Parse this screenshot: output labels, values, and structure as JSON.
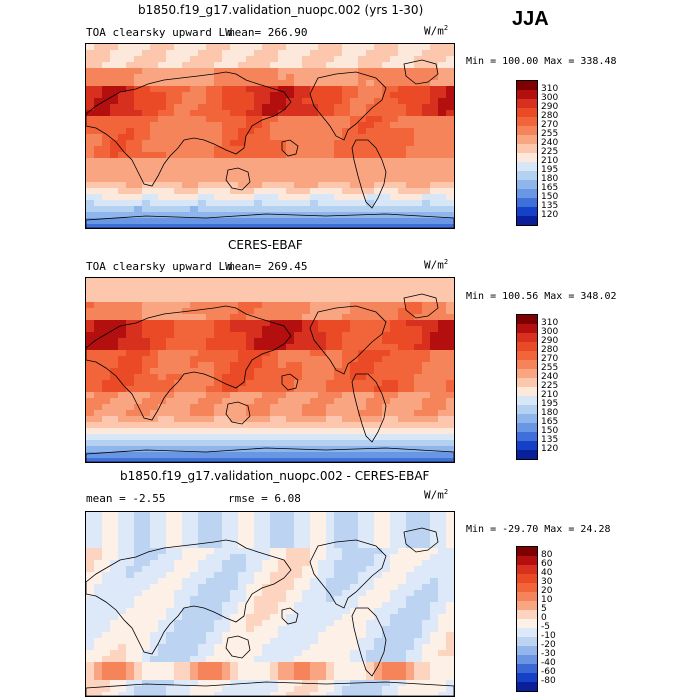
{
  "season": "JJA",
  "panels": [
    {
      "title": "b1850.f19_g17.validation_nuopc.002 (yrs 1-30)",
      "variable": "TOA clearsky upward LW",
      "mean_label": "mean= 266.90",
      "units": "W/m",
      "units_sup": "2",
      "minmax": "Min = 100.00 Max = 338.48",
      "kind": "absolute",
      "colorbar": {
        "labels": [
          "310",
          "300",
          "290",
          "280",
          "270",
          "255",
          "240",
          "225",
          "210",
          "195",
          "180",
          "165",
          "150",
          "135",
          "120"
        ],
        "colors": [
          "#7f0000",
          "#b40f0f",
          "#d7301f",
          "#ea4a26",
          "#f2653a",
          "#f6845a",
          "#f9a582",
          "#fcc7ad",
          "#fde8dc",
          "#d7e7f7",
          "#b5d1f2",
          "#8eb6ec",
          "#6a97e4",
          "#3f6fd8",
          "#1540c8",
          "#0a1f9a"
        ]
      }
    },
    {
      "title": "CERES-EBAF",
      "variable": "TOA clearsky upward LW",
      "mean_label": "mean= 269.45",
      "units": "W/m",
      "units_sup": "2",
      "minmax": "Min = 100.56 Max = 348.02",
      "kind": "absolute",
      "colorbar": {
        "labels": [
          "310",
          "300",
          "290",
          "280",
          "270",
          "255",
          "240",
          "225",
          "210",
          "195",
          "180",
          "165",
          "150",
          "135",
          "120"
        ],
        "colors": [
          "#7f0000",
          "#b40f0f",
          "#d7301f",
          "#ea4a26",
          "#f2653a",
          "#f6845a",
          "#f9a582",
          "#fcc7ad",
          "#fde8dc",
          "#d7e7f7",
          "#b5d1f2",
          "#8eb6ec",
          "#6a97e4",
          "#3f6fd8",
          "#1540c8",
          "#0a1f9a"
        ]
      }
    },
    {
      "title": "b1850.f19_g17.validation_nuopc.002 - CERES-EBAF",
      "mean_label": "mean =   -2.55",
      "rmse_label": "rmse =    6.08",
      "units": "W/m",
      "units_sup": "2",
      "minmax": "Min = -29.70 Max =  24.28",
      "kind": "difference",
      "colorbar": {
        "labels": [
          "80",
          "60",
          "40",
          "30",
          "20",
          "10",
          "5",
          "0",
          "-5",
          "-10",
          "-20",
          "-30",
          "-40",
          "-60",
          "-80"
        ],
        "colors": [
          "#7f0000",
          "#b40f0f",
          "#d7301f",
          "#ea4a26",
          "#f2653a",
          "#f6845a",
          "#f9a582",
          "#fcd4c0",
          "#fdf0e6",
          "#dde9f8",
          "#bcd3f2",
          "#93b6ec",
          "#6b94e2",
          "#3c68d6",
          "#1540c8",
          "#0a1f9a"
        ]
      }
    }
  ],
  "chart_data": [
    {
      "type": "heatmap",
      "title": "b1850.f19_g17.validation_nuopc.002 (yrs 1-30)",
      "subtitle": "TOA clearsky upward LW",
      "mean": 266.9,
      "min": 100.0,
      "max": 338.48,
      "units": "W/m^2",
      "levels": [
        120,
        135,
        150,
        165,
        180,
        195,
        210,
        225,
        240,
        255,
        270,
        280,
        290,
        300,
        310
      ]
    },
    {
      "type": "heatmap",
      "title": "CERES-EBAF",
      "subtitle": "TOA clearsky upward LW",
      "mean": 269.45,
      "min": 100.56,
      "max": 348.02,
      "units": "W/m^2",
      "levels": [
        120,
        135,
        150,
        165,
        180,
        195,
        210,
        225,
        240,
        255,
        270,
        280,
        290,
        300,
        310
      ]
    },
    {
      "type": "heatmap",
      "title": "b1850.f19_g17.validation_nuopc.002 - CERES-EBAF",
      "mean": -2.55,
      "rmse": 6.08,
      "min": -29.7,
      "max": 24.28,
      "units": "W/m^2",
      "levels": [
        -80,
        -60,
        -40,
        -30,
        -20,
        -10,
        -5,
        0,
        5,
        10,
        20,
        30,
        40,
        60,
        80
      ]
    }
  ]
}
